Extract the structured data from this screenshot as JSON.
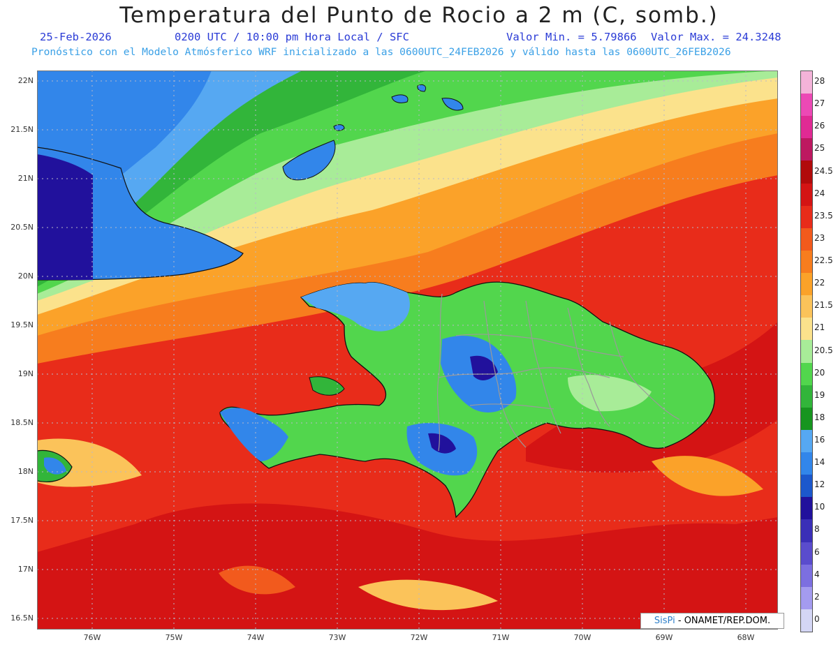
{
  "header": {
    "title": "Temperatura del Punto de Rocio a 2 m (C, somb.)",
    "date": "25-Feb-2026",
    "time_info": "0200 UTC / 10:00 pm Hora Local / SFC",
    "min_value": "Valor Min. = 5.79866",
    "max_value": "Valor Max. = 24.3248",
    "model_info": "Pronóstico con el Modelo Atmósferico WRF inicializado a las 0600UTC_24FEB2026 y válido hasta las  0600UTC_26FEB2026"
  },
  "axes": {
    "y_labels": [
      "22N",
      "21.5N",
      "21N",
      "20.5N",
      "20N",
      "19.5N",
      "19N",
      "18.5N",
      "18N",
      "17.5N",
      "17N",
      "16.5N"
    ],
    "x_labels": [
      "76W",
      "75W",
      "74W",
      "73W",
      "72W",
      "71W",
      "70W",
      "69W",
      "68W"
    ]
  },
  "colorbar": {
    "labels": [
      "28",
      "27",
      "26",
      "25",
      "24.5",
      "24",
      "23.5",
      "23",
      "22.5",
      "22",
      "21.5",
      "21",
      "20.5",
      "20",
      "19",
      "18",
      "16",
      "14",
      "12",
      "10",
      "8",
      "6",
      "4",
      "2",
      "0"
    ],
    "colors": [
      "#f4b3d9",
      "#ec49b5",
      "#e02a94",
      "#bd1860",
      "#b10b0b",
      "#d41414",
      "#e82c1a",
      "#f25a1d",
      "#f77d1e",
      "#fba229",
      "#fbc35a",
      "#fbe28c",
      "#a8ec98",
      "#52d64d",
      "#32b53a",
      "#17951f",
      "#56a8f2",
      "#3286ea",
      "#1c58cc",
      "#21119c",
      "#3a2fb7",
      "#5a4ccd",
      "#7c6fe0",
      "#a49bef",
      "#d4d6f5"
    ]
  },
  "credit": {
    "brand": "SisPi",
    "text": " - ONAMET/REP.DOM."
  }
}
